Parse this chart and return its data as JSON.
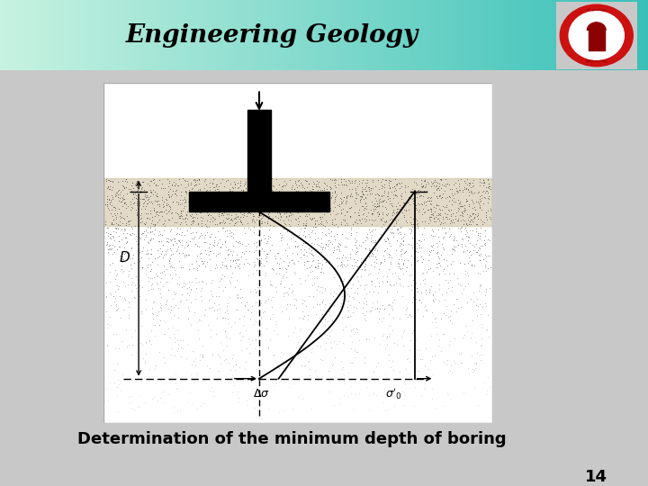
{
  "title": "Engineering Geology",
  "subtitle": "Determination of the minimum depth of boring",
  "page_number": "14",
  "bg_color": "#c8c8c8",
  "title_fontsize": 20,
  "subtitle_fontsize": 13,
  "page_fontsize": 13
}
